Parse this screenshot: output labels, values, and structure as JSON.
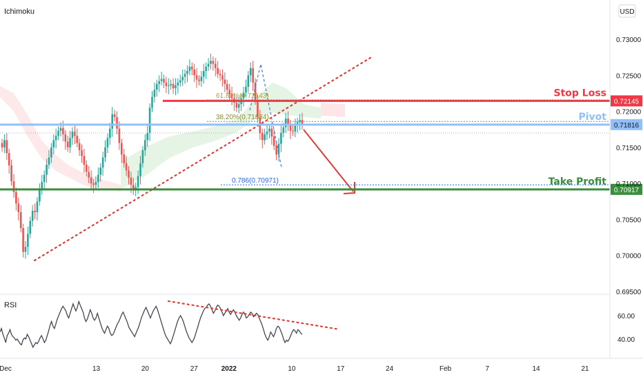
{
  "indicator_title": "Ichimoku",
  "currency_button": "USD",
  "rsi": {
    "title": "RSI",
    "ticks": [
      {
        "label": "60.00",
        "value": 60
      },
      {
        "label": "40.00",
        "value": 40
      }
    ],
    "values": [
      46,
      49,
      44,
      41,
      37,
      43,
      45,
      48,
      44,
      42,
      41,
      39,
      40,
      38,
      36,
      35,
      39,
      41,
      40,
      44,
      42,
      39,
      36,
      33,
      35,
      37,
      36,
      38,
      41,
      43,
      40,
      37,
      39,
      43,
      47,
      52,
      55,
      51,
      49,
      53,
      57,
      60,
      63,
      66,
      68,
      66,
      64,
      60,
      58,
      62,
      66,
      70,
      67,
      64,
      67,
      72,
      69,
      66,
      63,
      58,
      55,
      57,
      61,
      65,
      62,
      58,
      56,
      58,
      62,
      58,
      54,
      50,
      47,
      45,
      48,
      51,
      49,
      45,
      43,
      44,
      47,
      50,
      53,
      55,
      58,
      61,
      63,
      60,
      57,
      54,
      50,
      48,
      46,
      44,
      42,
      45,
      48,
      51,
      55,
      59,
      62,
      65,
      67,
      64,
      61,
      58,
      61,
      64,
      66,
      68,
      65,
      61,
      57,
      53,
      49,
      45,
      42,
      40,
      38,
      36,
      39,
      43,
      47,
      51,
      55,
      58,
      60,
      58,
      55,
      51,
      47,
      44,
      41,
      39,
      37,
      39,
      42,
      46,
      50,
      54,
      58,
      61,
      64,
      66,
      67,
      69,
      70,
      68,
      65,
      62,
      64,
      67,
      69,
      68,
      66,
      63,
      60,
      62,
      64,
      66,
      63,
      61,
      63,
      65,
      63,
      60,
      58,
      56,
      58,
      61,
      63,
      61,
      58,
      59,
      61,
      63,
      62,
      59,
      60,
      62,
      61,
      58,
      55,
      52,
      48,
      44,
      41,
      39,
      42,
      46,
      44,
      42,
      45,
      49,
      51,
      50,
      47,
      44,
      40,
      37,
      39,
      38,
      40,
      43,
      46,
      48,
      47,
      45,
      48,
      47,
      45,
      44
    ]
  },
  "chart_data": {
    "type": "candlestick",
    "price_ticks": [
      {
        "label": "0.73000",
        "value": 0.73
      },
      {
        "label": "0.72500",
        "value": 0.725
      },
      {
        "label": "0.72000",
        "value": 0.72
      },
      {
        "label": "0.71500",
        "value": 0.715
      },
      {
        "label": "0.71000",
        "value": 0.71
      },
      {
        "label": "0.70500",
        "value": 0.705
      },
      {
        "label": "0.70000",
        "value": 0.7
      },
      {
        "label": "0.69500",
        "value": 0.695
      }
    ],
    "x_ticks": [
      {
        "label": "Dec",
        "day": 0
      },
      {
        "label": "13",
        "day": 13
      },
      {
        "label": "20",
        "day": 20
      },
      {
        "label": "27",
        "day": 27
      },
      {
        "label": "2022",
        "day": 32
      },
      {
        "label": "10",
        "day": 41
      },
      {
        "label": "17",
        "day": 48
      },
      {
        "label": "24",
        "day": 55
      },
      {
        "label": "Feb",
        "day": 63
      },
      {
        "label": "7",
        "day": 69
      },
      {
        "label": "14",
        "day": 76
      },
      {
        "label": "21",
        "day": 83
      }
    ],
    "levels": [
      {
        "name": "Stop Loss",
        "value": 0.72145,
        "price_label": "0.72145",
        "color": "#f23645"
      },
      {
        "name": "Pivot",
        "value": 0.71816,
        "price_label": "0.71816",
        "color": "#90bff9"
      },
      {
        "name": "Take Profit",
        "value": 0.70917,
        "price_label": "0.70917",
        "color": "#388e3c"
      }
    ],
    "fib_labels": [
      {
        "text": "61.80%(0.72143)",
        "value": 0.7216
      },
      {
        "text": "38.20%(0.71834)",
        "value": 0.7186
      },
      {
        "text": "0.786(0.70971)",
        "value": 0.7098
      }
    ],
    "close_series": [
      0.715,
      0.716,
      0.7142,
      0.7125,
      0.7103,
      0.7088,
      0.7072,
      0.706,
      0.7038,
      0.7005,
      0.7012,
      0.703,
      0.7048,
      0.7062,
      0.706,
      0.7075,
      0.7092,
      0.7102,
      0.7112,
      0.7126,
      0.7136,
      0.715,
      0.716,
      0.7166,
      0.7173,
      0.7177,
      0.7168,
      0.7158,
      0.715,
      0.7163,
      0.7172,
      0.7166,
      0.7156,
      0.7146,
      0.7138,
      0.7126,
      0.7116,
      0.7108,
      0.71,
      0.7098,
      0.7102,
      0.7112,
      0.7122,
      0.7136,
      0.715,
      0.7163,
      0.7176,
      0.7196,
      0.7192,
      0.7176,
      0.7156,
      0.714,
      0.7128,
      0.7118,
      0.7108,
      0.7098,
      0.709,
      0.7095,
      0.711,
      0.7128,
      0.7146,
      0.716,
      0.717,
      0.7205,
      0.722,
      0.723,
      0.7238,
      0.7242,
      0.7245,
      0.724,
      0.7235,
      0.7236,
      0.7238,
      0.7232,
      0.7236,
      0.724,
      0.7243,
      0.7248,
      0.7252,
      0.7256,
      0.7262,
      0.7258,
      0.725,
      0.7244,
      0.7242,
      0.7248,
      0.7256,
      0.7262,
      0.7266,
      0.727,
      0.7266,
      0.726,
      0.7252,
      0.725,
      0.7244,
      0.7238,
      0.723,
      0.7224,
      0.7218,
      0.7212,
      0.7205,
      0.721,
      0.7218,
      0.7226,
      0.7234,
      0.725,
      0.726,
      0.724,
      0.7215,
      0.7192,
      0.717,
      0.716,
      0.7168,
      0.7172,
      0.7176,
      0.7165,
      0.7152,
      0.714,
      0.7155,
      0.717,
      0.7178,
      0.719,
      0.7182,
      0.7173,
      0.7172,
      0.718,
      0.7185,
      0.7188,
      0.7181
    ]
  }
}
